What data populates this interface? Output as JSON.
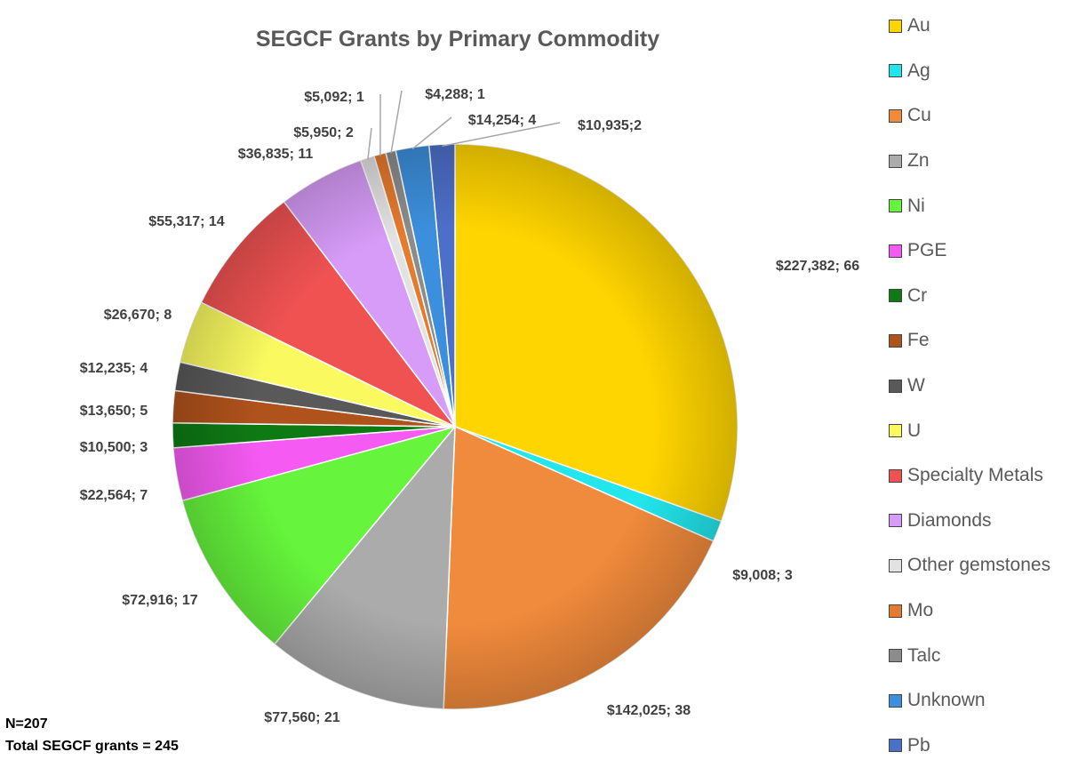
{
  "chart_data": {
    "type": "pie",
    "title": "SEGCF Grants by Primary Commodity",
    "slices": [
      {
        "category": "Au",
        "value": 227382,
        "count": 66,
        "label": "$227,382; 66",
        "color": "#FFD500"
      },
      {
        "category": "Ag",
        "value": 9008,
        "count": 3,
        "label": "$9,008; 3",
        "color": "#22E6EC"
      },
      {
        "category": "Cu",
        "value": 142025,
        "count": 38,
        "label": "$142,025; 38",
        "color": "#F08A3C"
      },
      {
        "category": "Zn",
        "value": 77560,
        "count": 21,
        "label": "$77,560; 21",
        "color": "#ABABAB"
      },
      {
        "category": "Ni",
        "value": 72916,
        "count": 17,
        "label": "$72,916; 17",
        "color": "#66F53C"
      },
      {
        "category": "PGE",
        "value": 22564,
        "count": 7,
        "label": "$22,564; 7",
        "color": "#F55AF2"
      },
      {
        "category": "Cr",
        "value": 10500,
        "count": 3,
        "label": "$10,500; 3",
        "color": "#0E7A14"
      },
      {
        "category": "Fe",
        "value": 13650,
        "count": 5,
        "label": "$13,650; 5",
        "color": "#B0521C"
      },
      {
        "category": "W",
        "value": 12235,
        "count": 4,
        "label": "$12,235; 4",
        "color": "#595959"
      },
      {
        "category": "U",
        "value": 26670,
        "count": 8,
        "label": "$26,670; 8",
        "color": "#FAFA60"
      },
      {
        "category": "Specialty Metals",
        "value": 55317,
        "count": 14,
        "label": "$55,317; 14",
        "color": "#F05252"
      },
      {
        "category": "Diamonds",
        "value": 36835,
        "count": 11,
        "label": "$36,835; 11",
        "color": "#D79CF8"
      },
      {
        "category": "Other gemstones",
        "value": 5950,
        "count": 2,
        "label": "$5,950; 2",
        "color": "#E2E2E2"
      },
      {
        "category": "Mo",
        "value": 5092,
        "count": 1,
        "label": "$5,092; 1",
        "color": "#E67A2E"
      },
      {
        "category": "Talc",
        "value": 4288,
        "count": 1,
        "label": "$4,288; 1",
        "color": "#8C8C8C"
      },
      {
        "category": "Unknown",
        "value": 14254,
        "count": 4,
        "label": "$14,254; 4",
        "color": "#3C8FDC"
      },
      {
        "category": "Pb",
        "value": 10935,
        "count": 2,
        "label": "$10,935;2",
        "color": "#4C6FC8"
      }
    ],
    "legend_position": "right"
  },
  "notes": {
    "n": "N=207",
    "total": "Total SEGCF grants = 245"
  }
}
